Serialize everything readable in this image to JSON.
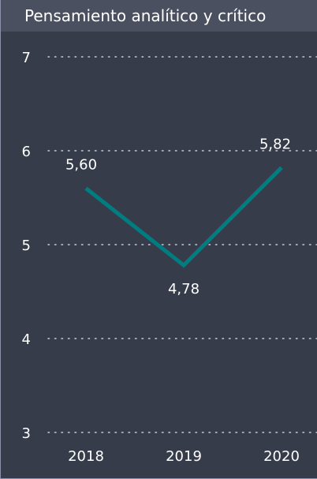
{
  "chart_data": {
    "type": "line",
    "title": "Pensamiento analítico y crítico",
    "categories": [
      "2018",
      "2019",
      "2020"
    ],
    "values": [
      5.6,
      4.78,
      5.82
    ],
    "data_labels": [
      "5,60",
      "4,78",
      "5,82"
    ],
    "ylim": [
      3,
      7
    ],
    "yticks": [
      7,
      6,
      5,
      4,
      3
    ],
    "ytick_labels": [
      "7",
      "6",
      "5",
      "4",
      "3"
    ],
    "grid": true,
    "line_color": "#007d80",
    "grid_color": "#c8ccd8"
  }
}
